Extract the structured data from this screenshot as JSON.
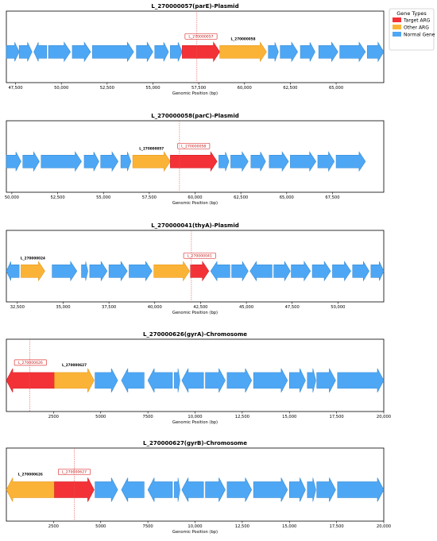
{
  "legend": {
    "title": "Gene Types",
    "entries": [
      {
        "label": "Target ARG",
        "color": "#f33237"
      },
      {
        "label": "Other ARG",
        "color": "#fbb337"
      },
      {
        "label": "Normal Gene",
        "color": "#4ea7f4"
      }
    ]
  },
  "chart_data": [
    {
      "type": "gene-map",
      "title": "L_270000057(parE)-Plasmid",
      "xlabel": "Genomic Position (bp)",
      "xlim": [
        47000,
        67600
      ],
      "ticks": [
        47500,
        50000,
        52500,
        55000,
        57500,
        60000,
        62500,
        65000
      ],
      "tick_labels": [
        "47,500",
        "50,000",
        "52,500",
        "55,000",
        "57,500",
        "60,000",
        "62,500",
        "65,000"
      ],
      "target_position": 57400,
      "genes": [
        {
          "start": 47000,
          "end": 47700,
          "strand": "+",
          "kind": "normal"
        },
        {
          "start": 47700,
          "end": 48400,
          "strand": "+",
          "kind": "normal"
        },
        {
          "start": 48500,
          "end": 49200,
          "strand": "-",
          "kind": "normal"
        },
        {
          "start": 49300,
          "end": 50500,
          "strand": "+",
          "kind": "normal"
        },
        {
          "start": 50600,
          "end": 51600,
          "strand": "+",
          "kind": "normal"
        },
        {
          "start": 51700,
          "end": 53950,
          "strand": "+",
          "kind": "normal"
        },
        {
          "start": 54100,
          "end": 55000,
          "strand": "+",
          "kind": "normal"
        },
        {
          "start": 55100,
          "end": 55850,
          "strand": "+",
          "kind": "normal"
        },
        {
          "start": 55950,
          "end": 56600,
          "strand": "+",
          "kind": "normal"
        },
        {
          "start": 56600,
          "end": 58650,
          "strand": "+",
          "kind": "target",
          "label": "L_270000057"
        },
        {
          "start": 58650,
          "end": 61200,
          "strand": "+",
          "kind": "other",
          "label": "L_270000058"
        },
        {
          "start": 61300,
          "end": 61850,
          "strand": "+",
          "kind": "normal"
        },
        {
          "start": 61950,
          "end": 62900,
          "strand": "+",
          "kind": "normal"
        },
        {
          "start": 63050,
          "end": 63850,
          "strand": "+",
          "kind": "normal"
        },
        {
          "start": 64050,
          "end": 65100,
          "strand": "+",
          "kind": "normal"
        },
        {
          "start": 65200,
          "end": 66600,
          "strand": "+",
          "kind": "normal"
        },
        {
          "start": 66700,
          "end": 67600,
          "strand": "+",
          "kind": "normal"
        }
      ]
    },
    {
      "type": "gene-map",
      "title": "L_270000058(parC)-Plasmid",
      "xlabel": "Genomic Position (bp)",
      "xlim": [
        49700,
        70300
      ],
      "ticks": [
        50000,
        52500,
        55000,
        57500,
        60000,
        62500,
        65000,
        67500
      ],
      "tick_labels": [
        "50,000",
        "52,500",
        "55,000",
        "57,500",
        "60,000",
        "62,500",
        "65,000",
        "67,500"
      ],
      "target_position": 59150,
      "genes": [
        {
          "start": 49700,
          "end": 50500,
          "strand": "+",
          "kind": "normal"
        },
        {
          "start": 50600,
          "end": 51500,
          "strand": "+",
          "kind": "normal"
        },
        {
          "start": 51600,
          "end": 53800,
          "strand": "+",
          "kind": "normal"
        },
        {
          "start": 53950,
          "end": 54750,
          "strand": "+",
          "kind": "normal"
        },
        {
          "start": 54850,
          "end": 55800,
          "strand": "+",
          "kind": "normal"
        },
        {
          "start": 55950,
          "end": 56500,
          "strand": "+",
          "kind": "normal"
        },
        {
          "start": 56600,
          "end": 58650,
          "strand": "+",
          "kind": "other",
          "label": "L_270000057"
        },
        {
          "start": 58650,
          "end": 61200,
          "strand": "+",
          "kind": "target",
          "label": "L_270000058"
        },
        {
          "start": 61300,
          "end": 61850,
          "strand": "+",
          "kind": "normal"
        },
        {
          "start": 61950,
          "end": 62900,
          "strand": "+",
          "kind": "normal"
        },
        {
          "start": 63050,
          "end": 63850,
          "strand": "+",
          "kind": "normal"
        },
        {
          "start": 64050,
          "end": 65100,
          "strand": "+",
          "kind": "normal"
        },
        {
          "start": 65200,
          "end": 66600,
          "strand": "+",
          "kind": "normal"
        },
        {
          "start": 66700,
          "end": 67600,
          "strand": "+",
          "kind": "normal"
        },
        {
          "start": 67700,
          "end": 69300,
          "strand": "+",
          "kind": "normal"
        }
      ]
    },
    {
      "type": "gene-map",
      "title": "L_270000041(thyA)-Plasmid",
      "xlabel": "Genomic Position (bp)",
      "xlim": [
        31900,
        52500
      ],
      "ticks": [
        32500,
        35000,
        37500,
        40000,
        42500,
        45000,
        47500,
        50000
      ],
      "tick_labels": [
        "32,500",
        "35,000",
        "37,500",
        "40,000",
        "42,500",
        "45,000",
        "47,500",
        "50,000"
      ],
      "target_position": 42000,
      "genes": [
        {
          "start": 31900,
          "end": 32600,
          "strand": "-",
          "kind": "normal"
        },
        {
          "start": 32700,
          "end": 34000,
          "strand": "+",
          "kind": "other",
          "label": "L_270000024"
        },
        {
          "start": 34400,
          "end": 35750,
          "strand": "+",
          "kind": "normal"
        },
        {
          "start": 36000,
          "end": 36350,
          "strand": "+",
          "kind": "normal"
        },
        {
          "start": 36450,
          "end": 37400,
          "strand": "+",
          "kind": "normal"
        },
        {
          "start": 37500,
          "end": 38500,
          "strand": "+",
          "kind": "normal"
        },
        {
          "start": 38600,
          "end": 39850,
          "strand": "+",
          "kind": "normal"
        },
        {
          "start": 39950,
          "end": 41900,
          "strand": "+",
          "kind": "other"
        },
        {
          "start": 41950,
          "end": 42950,
          "strand": "+",
          "kind": "target",
          "label": "L_270000041"
        },
        {
          "start": 43050,
          "end": 44100,
          "strand": "-",
          "kind": "normal"
        },
        {
          "start": 44200,
          "end": 45100,
          "strand": "+",
          "kind": "normal"
        },
        {
          "start": 45200,
          "end": 46400,
          "strand": "-",
          "kind": "normal"
        },
        {
          "start": 46500,
          "end": 47400,
          "strand": "+",
          "kind": "normal"
        },
        {
          "start": 47450,
          "end": 48500,
          "strand": "+",
          "kind": "normal"
        },
        {
          "start": 48600,
          "end": 49600,
          "strand": "+",
          "kind": "normal"
        },
        {
          "start": 49700,
          "end": 50700,
          "strand": "+",
          "kind": "normal"
        },
        {
          "start": 50800,
          "end": 51700,
          "strand": "+",
          "kind": "normal"
        },
        {
          "start": 51800,
          "end": 52500,
          "strand": "+",
          "kind": "normal"
        }
      ]
    },
    {
      "type": "gene-map",
      "title": "L_270000626(gyrA)-Chromosome",
      "xlabel": "Genomic Position (bp)",
      "xlim": [
        0,
        20000
      ],
      "ticks": [
        2500,
        5000,
        7500,
        10000,
        12500,
        15000,
        17500,
        20000
      ],
      "tick_labels": [
        "2500",
        "5000",
        "7500",
        "10,000",
        "12,500",
        "15,000",
        "17,500",
        "20,000"
      ],
      "target_position": 1250,
      "genes": [
        {
          "start": 0,
          "end": 2550,
          "strand": "-",
          "kind": "target",
          "label": "L_270000626"
        },
        {
          "start": 2550,
          "end": 4650,
          "strand": "+",
          "kind": "other",
          "label": "L_270000627"
        },
        {
          "start": 4700,
          "end": 5900,
          "strand": "+",
          "kind": "normal"
        },
        {
          "start": 6100,
          "end": 7300,
          "strand": "-",
          "kind": "normal"
        },
        {
          "start": 7500,
          "end": 8800,
          "strand": "-",
          "kind": "normal"
        },
        {
          "start": 8900,
          "end": 9200,
          "strand": "+",
          "kind": "normal"
        },
        {
          "start": 9300,
          "end": 10450,
          "strand": "-",
          "kind": "normal"
        },
        {
          "start": 10550,
          "end": 11600,
          "strand": "+",
          "kind": "normal"
        },
        {
          "start": 11700,
          "end": 13000,
          "strand": "+",
          "kind": "normal"
        },
        {
          "start": 13100,
          "end": 14900,
          "strand": "+",
          "kind": "normal"
        },
        {
          "start": 15000,
          "end": 15850,
          "strand": "+",
          "kind": "normal"
        },
        {
          "start": 15950,
          "end": 16400,
          "strand": "+",
          "kind": "normal"
        },
        {
          "start": 16450,
          "end": 17450,
          "strand": "+",
          "kind": "normal"
        },
        {
          "start": 17550,
          "end": 20000,
          "strand": "+",
          "kind": "normal"
        }
      ]
    },
    {
      "type": "gene-map",
      "title": "L_270000627(gyrB)-Chromosome",
      "xlabel": "Genomic Position (bp)",
      "xlim": [
        0,
        20000
      ],
      "ticks": [
        2500,
        5000,
        7500,
        10000,
        12500,
        15000,
        17500,
        20000
      ],
      "tick_labels": [
        "2500",
        "5000",
        "7500",
        "10,000",
        "12,500",
        "15,000",
        "17,500",
        "20,000"
      ],
      "target_position": 3600,
      "genes": [
        {
          "start": 0,
          "end": 2550,
          "strand": "-",
          "kind": "other",
          "label": "L_270000626"
        },
        {
          "start": 2550,
          "end": 4650,
          "strand": "+",
          "kind": "target",
          "label": "L_270000627"
        },
        {
          "start": 4700,
          "end": 5900,
          "strand": "+",
          "kind": "normal"
        },
        {
          "start": 6100,
          "end": 7300,
          "strand": "-",
          "kind": "normal"
        },
        {
          "start": 7500,
          "end": 8800,
          "strand": "-",
          "kind": "normal"
        },
        {
          "start": 8900,
          "end": 9200,
          "strand": "+",
          "kind": "normal"
        },
        {
          "start": 9300,
          "end": 10450,
          "strand": "-",
          "kind": "normal"
        },
        {
          "start": 10550,
          "end": 11600,
          "strand": "+",
          "kind": "normal"
        },
        {
          "start": 11700,
          "end": 13000,
          "strand": "+",
          "kind": "normal"
        },
        {
          "start": 13100,
          "end": 14900,
          "strand": "+",
          "kind": "normal"
        },
        {
          "start": 15000,
          "end": 15850,
          "strand": "+",
          "kind": "normal"
        },
        {
          "start": 15950,
          "end": 16400,
          "strand": "+",
          "kind": "normal"
        },
        {
          "start": 16450,
          "end": 17450,
          "strand": "+",
          "kind": "normal"
        },
        {
          "start": 17550,
          "end": 20000,
          "strand": "+",
          "kind": "normal"
        }
      ]
    }
  ]
}
